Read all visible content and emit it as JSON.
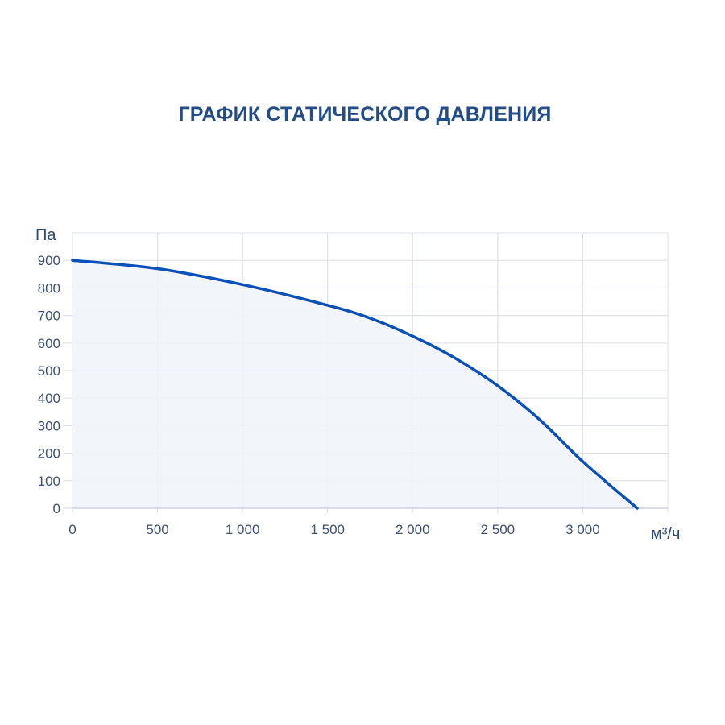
{
  "chart_data": {
    "type": "area",
    "title": "ГРАФИК СТАТИЧЕСКОГО ДАВЛЕНИЯ",
    "xlabel": "м³/ч",
    "ylabel": "Па",
    "xlim": [
      0,
      3500
    ],
    "ylim": [
      0,
      1000
    ],
    "x_ticks": [
      0,
      500,
      1000,
      1500,
      2000,
      2500,
      3000
    ],
    "x_tick_labels": [
      "0",
      "500",
      "1 000",
      "1 500",
      "2 000",
      "2 500",
      "3 000"
    ],
    "y_ticks": [
      0,
      100,
      200,
      300,
      400,
      500,
      600,
      700,
      800,
      900
    ],
    "y_tick_labels": [
      "0",
      "100",
      "200",
      "300",
      "400",
      "500",
      "600",
      "700",
      "800",
      "900"
    ],
    "grid": true,
    "series": [
      {
        "x": [
          0,
          500,
          1000,
          1500,
          1750,
          2000,
          2250,
          2500,
          2750,
          3000,
          3320
        ],
        "y": [
          900,
          870,
          812,
          737,
          690,
          625,
          545,
          445,
          320,
          170,
          0
        ]
      }
    ],
    "colors": {
      "line": "#0b4fb8",
      "fill": "#f1f5fb",
      "grid": "#dde1e8",
      "title": "#234d86"
    }
  }
}
